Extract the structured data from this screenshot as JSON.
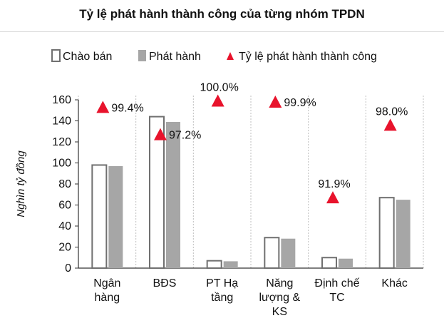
{
  "title": "Tỷ lệ phát hành thành công của từng nhóm TPDN",
  "colors": {
    "offered_stroke": "#707070",
    "issued_fill": "#a6a6a6",
    "rate_marker": "#e8132c",
    "axis": "#333333",
    "separator": "#bfbfbf"
  },
  "chart_data": {
    "type": "bar",
    "title": "Tỷ lệ phát hành thành công của từng nhóm TPDN",
    "ylabel": "Nghìn tỷ đồng",
    "ylim": [
      0,
      160
    ],
    "yticks": [
      0,
      20,
      40,
      60,
      80,
      100,
      120,
      140,
      160
    ],
    "categories": [
      [
        "Ngân",
        "hàng"
      ],
      [
        "BĐS"
      ],
      [
        "PT Hạ",
        "tầng"
      ],
      [
        "Năng",
        "lượng &",
        "KS"
      ],
      [
        "Định chế",
        "TC"
      ],
      [
        "Khác"
      ]
    ],
    "legend": {
      "position": "top-left"
    },
    "series": [
      {
        "name": "Chào bán",
        "style": "outline",
        "values": [
          98,
          144,
          7,
          29,
          10,
          67
        ]
      },
      {
        "name": "Phát hành",
        "style": "filled",
        "values": [
          97,
          139,
          6.5,
          28,
          9,
          65
        ]
      },
      {
        "name": "Tỷ lệ phát hành thành công",
        "style": "triangle-marker",
        "marker_y": [
          153,
          127,
          159,
          158,
          67,
          136
        ],
        "labels": [
          "99.4%",
          "97.2%",
          "100.0%",
          "99.9%",
          "91.9%",
          "98.0%"
        ],
        "label_side": [
          "right",
          "right",
          "above",
          "right",
          "above",
          "above"
        ]
      }
    ]
  }
}
